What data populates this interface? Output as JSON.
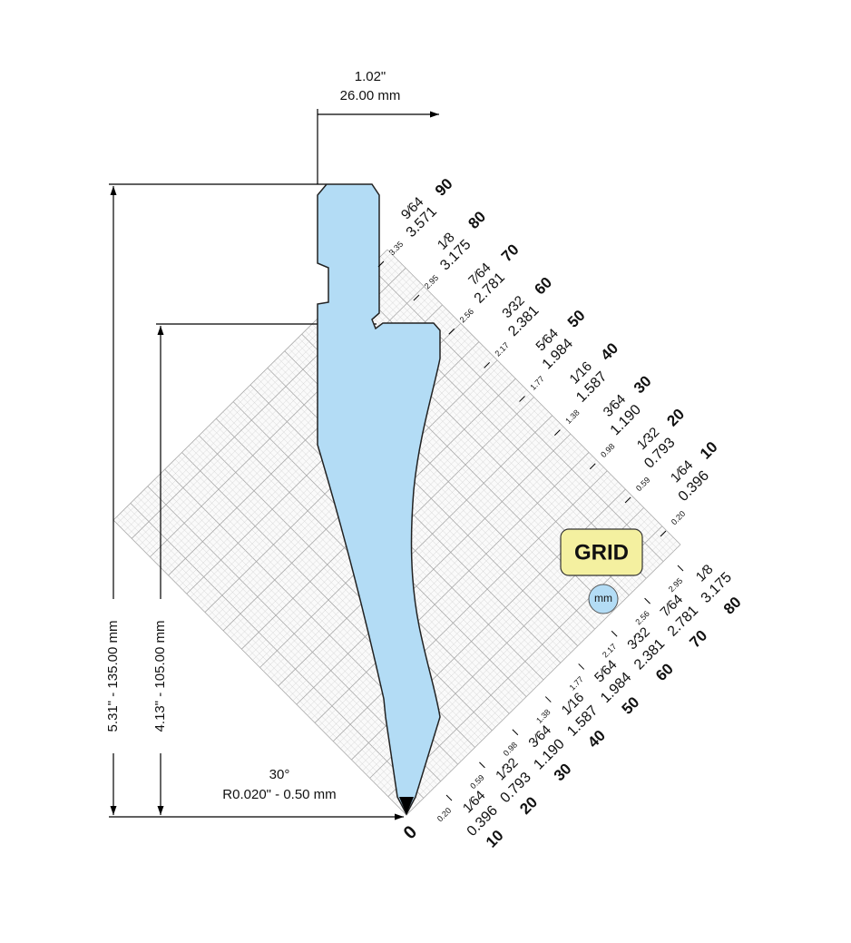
{
  "dimensions": {
    "width_in": "1.02\"",
    "width_mm": "26.00 mm",
    "total_height": "5.31\" - 135.00 mm",
    "working_height": "4.13\" - 105.00 mm",
    "angle": "30°",
    "radius": "R0.020\" - 0.50 mm"
  },
  "upper_scale": [
    {
      "value": "90",
      "fraction": "9⁄64",
      "decimal": "3.571",
      "small": "3.35"
    },
    {
      "value": "80",
      "fraction": "1⁄8",
      "decimal": "3.175",
      "small": "2.95"
    },
    {
      "value": "70",
      "fraction": "7⁄64",
      "decimal": "2.781",
      "small": "2.56"
    },
    {
      "value": "60",
      "fraction": "3⁄32",
      "decimal": "2.381",
      "small": "2.17"
    },
    {
      "value": "50",
      "fraction": "5⁄64",
      "decimal": "1.984",
      "small": "1.77"
    },
    {
      "value": "40",
      "fraction": "1⁄16",
      "decimal": "1.587",
      "small": "1.38"
    },
    {
      "value": "30",
      "fraction": "3⁄64",
      "decimal": "1.190",
      "small": "0.98"
    },
    {
      "value": "20",
      "fraction": "1⁄32",
      "decimal": "0.793",
      "small": "0.59"
    },
    {
      "value": "10",
      "fraction": "1⁄64",
      "decimal": "0.396",
      "small": "0.20"
    }
  ],
  "lower_scale": {
    "zero": "0",
    "marks": [
      {
        "value": "10",
        "fraction": "1⁄64",
        "decimal": "0.396",
        "small": "0.20"
      },
      {
        "value": "20",
        "fraction": "1⁄32",
        "decimal": "0.793",
        "small": "0.59"
      },
      {
        "value": "30",
        "fraction": "3⁄64",
        "decimal": "1.190",
        "small": "0.98"
      },
      {
        "value": "40",
        "fraction": "1⁄16",
        "decimal": "1.587",
        "small": "1.38"
      },
      {
        "value": "50",
        "fraction": "5⁄64",
        "decimal": "1.984",
        "small": "1.77"
      },
      {
        "value": "60",
        "fraction": "3⁄32",
        "decimal": "2.381",
        "small": "2.17"
      },
      {
        "value": "70",
        "fraction": "7⁄64",
        "decimal": "2.781",
        "small": "2.56"
      },
      {
        "value": "80",
        "fraction": "1⁄8",
        "decimal": "3.175",
        "small": "2.95"
      }
    ]
  },
  "buttons": {
    "grid": "GRID",
    "unit": "mm"
  }
}
